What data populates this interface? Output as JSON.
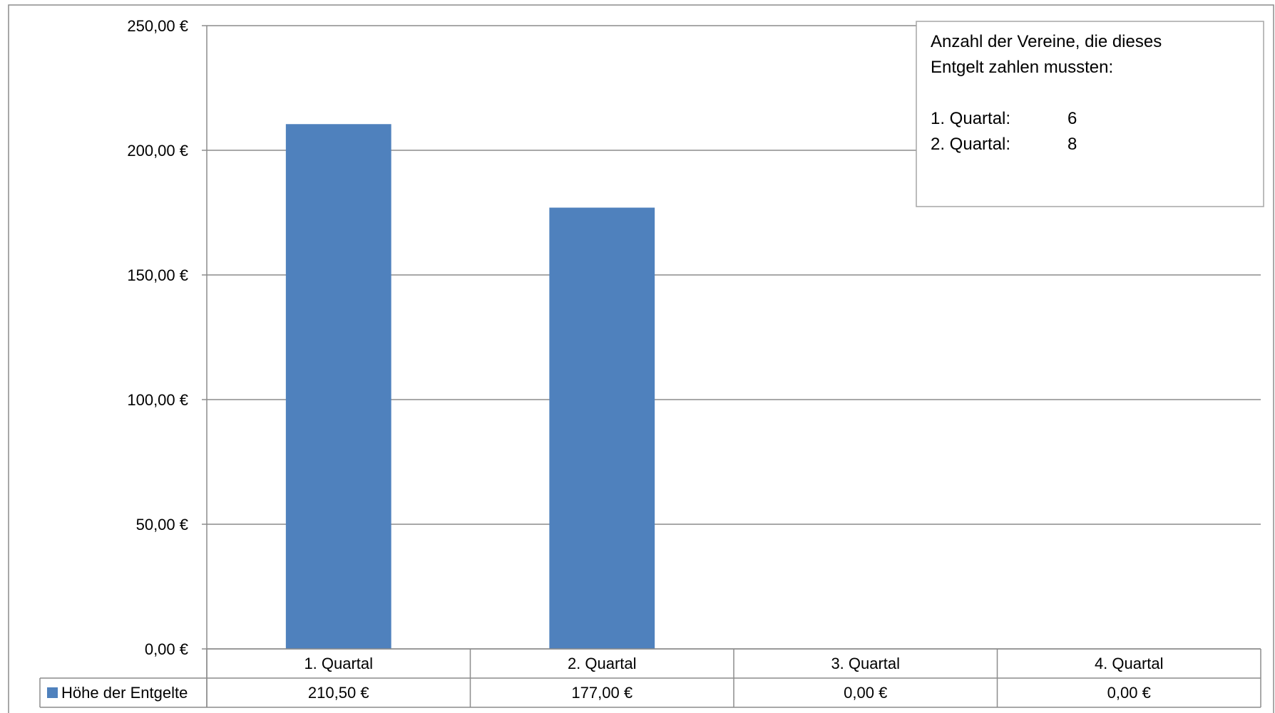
{
  "chart_data": {
    "type": "bar",
    "categories": [
      "1. Quartal",
      "2. Quartal",
      "3. Quartal",
      "4. Quartal"
    ],
    "series": [
      {
        "name": "Höhe der Entgelte",
        "values": [
          210.5,
          177.0,
          0.0,
          0.0
        ],
        "value_labels": [
          "210,50 €",
          "177,00 €",
          "0,00 €",
          "0,00 €"
        ]
      }
    ],
    "title": "",
    "xlabel": "",
    "ylabel": "",
    "ylim": [
      0,
      250
    ],
    "yticks": [
      0,
      50,
      100,
      150,
      200,
      250
    ],
    "ytick_labels": [
      "0,00 €",
      "50,00 €",
      "100,00 €",
      "150,00 €",
      "200,00 €",
      "250,00 €"
    ],
    "grid": true,
    "data_table": true,
    "legend_placement": "data-table-left",
    "bar_color": "#4F81BD",
    "annotation": {
      "lines": [
        "Anzahl der Vereine, die dieses",
        "Entgelt zahlen mussten:",
        "",
        "1. Quartal:",
        "2. Quartal:"
      ],
      "counts": [
        "6",
        "8"
      ]
    }
  }
}
